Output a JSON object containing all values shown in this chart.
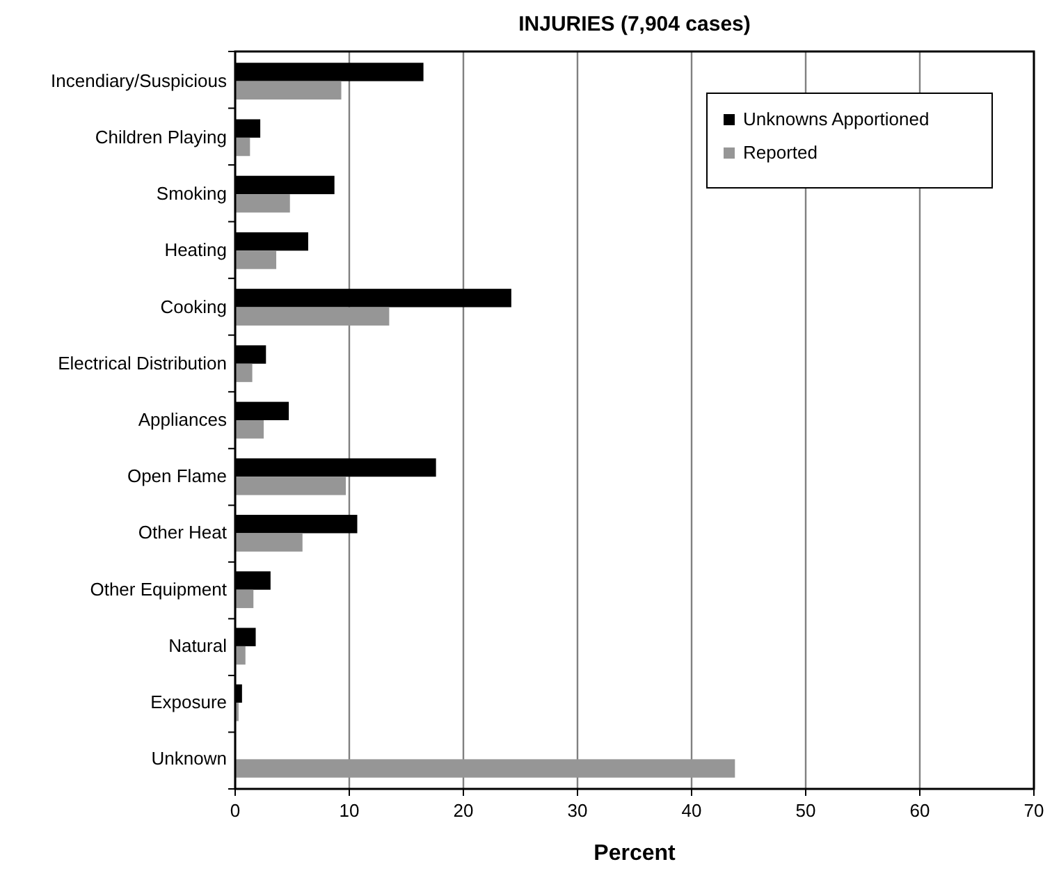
{
  "chart_data": {
    "type": "bar",
    "orientation": "horizontal",
    "title": "INJURIES (7,904 cases)",
    "xlabel": "Percent",
    "categories": [
      "Incendiary/Suspicious",
      "Children Playing",
      "Smoking",
      "Heating",
      "Cooking",
      "Electrical Distribution",
      "Appliances",
      "Open Flame",
      "Other Heat",
      "Other Equipment",
      "Natural",
      "Exposure",
      "Unknown"
    ],
    "series": [
      {
        "name": "Unknowns Apportioned",
        "color": "#000000",
        "values": [
          16.5,
          2.2,
          8.7,
          6.4,
          24.2,
          2.7,
          4.7,
          17.6,
          10.7,
          3.1,
          1.8,
          0.6,
          null
        ]
      },
      {
        "name": "Reported",
        "color": "#969696",
        "values": [
          9.3,
          1.3,
          4.8,
          3.6,
          13.5,
          1.5,
          2.5,
          9.7,
          5.9,
          1.6,
          0.9,
          0.3,
          43.8
        ]
      }
    ],
    "xlim": [
      0,
      70
    ],
    "xticks": [
      0,
      10,
      20,
      30,
      40,
      50,
      60,
      70
    ],
    "grid": "x",
    "legend": "top right"
  }
}
